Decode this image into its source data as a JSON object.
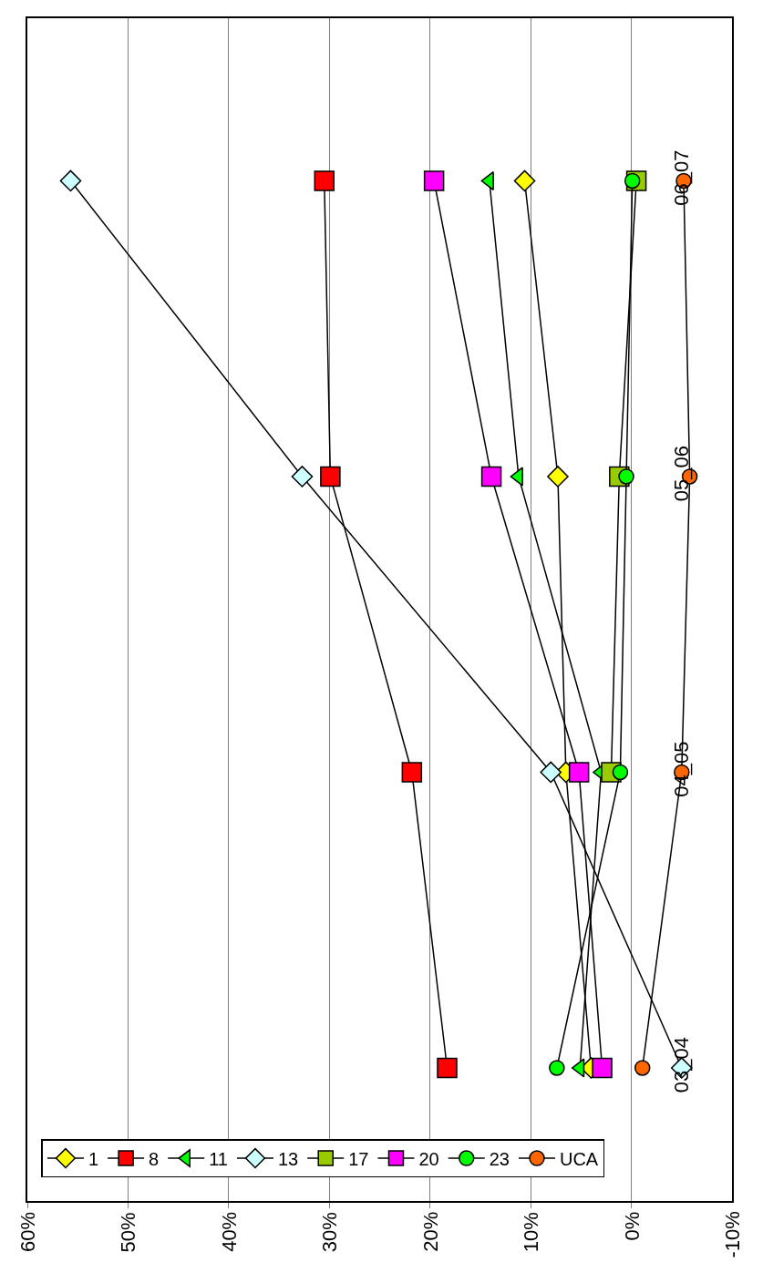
{
  "chart_data": {
    "type": "line",
    "orientation": "horizontal",
    "categories": [
      "06_07",
      "05_06",
      "04_05",
      "03_04"
    ],
    "series": [
      {
        "name": "1",
        "color": "#ffff00",
        "marker": "diamond",
        "values": [
          10.6,
          7.3,
          6.5,
          4
        ]
      },
      {
        "name": "8",
        "color": "#ff0000",
        "marker": "square",
        "values": [
          30.5,
          29.9,
          21.8,
          18.3
        ]
      },
      {
        "name": "11",
        "color": "#00ff00",
        "marker": "triangle",
        "values": [
          14.1,
          11.2,
          3,
          5.1
        ]
      },
      {
        "name": "13",
        "color": "#ccffff",
        "marker": "diamond",
        "values": [
          55.7,
          32.7,
          8.0,
          -5.0
        ]
      },
      {
        "name": "17",
        "color": "#99cc00",
        "marker": "square",
        "values": [
          -0.5,
          1.2,
          2.0,
          null
        ]
      },
      {
        "name": "20",
        "color": "#ff00ff",
        "marker": "square",
        "values": [
          19.6,
          13.9,
          5.2,
          2.9
        ]
      },
      {
        "name": "23",
        "color": "#00ff00",
        "marker": "circle",
        "values": [
          -0.1,
          0.5,
          1.1,
          7.4
        ]
      },
      {
        "name": "UCA",
        "color": "#ff6600",
        "marker": "circle",
        "values": [
          -5.2,
          -5.8,
          -5.0,
          -1.1
        ]
      }
    ],
    "xlim": [
      60,
      -10
    ],
    "xticks": [
      {
        "value": 60,
        "label": "60%"
      },
      {
        "value": 50,
        "label": "50%"
      },
      {
        "value": 40,
        "label": "40%"
      },
      {
        "value": 30,
        "label": "30%"
      },
      {
        "value": 20,
        "label": "20%"
      },
      {
        "value": 10,
        "label": "10%"
      },
      {
        "value": 0,
        "label": "0%"
      },
      {
        "value": -10,
        "label": "-10%"
      }
    ],
    "grid": "x",
    "legend": "bottom left",
    "line_style": "solid"
  }
}
